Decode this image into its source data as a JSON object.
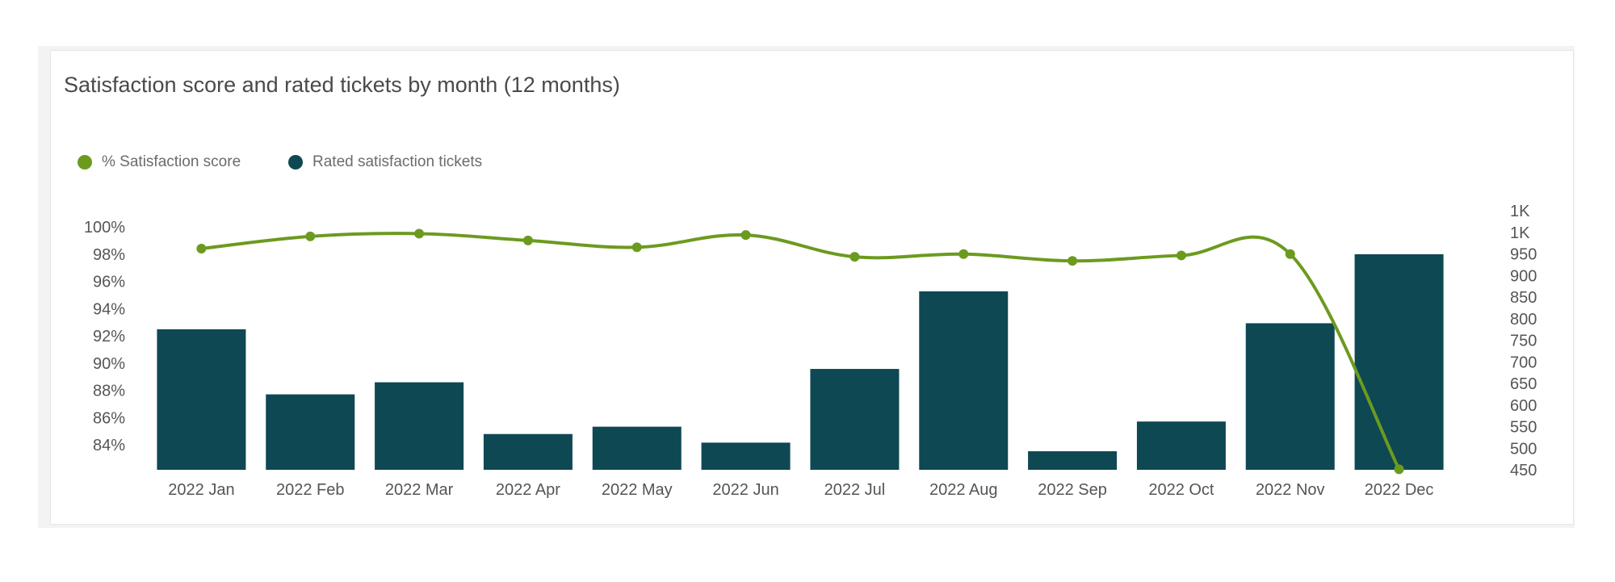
{
  "card": {
    "title": "Satisfaction score and rated tickets by month (12 months)"
  },
  "legend": {
    "items": [
      {
        "label": "% Satisfaction score",
        "color": "#6c9a1f"
      },
      {
        "label": "Rated satisfaction tickets",
        "color": "#0e4852"
      }
    ]
  },
  "chart_data": {
    "type": "bar",
    "categories": [
      "2022 Jan",
      "2022 Feb",
      "2022 Mar",
      "2022 Apr",
      "2022 May",
      "2022 Jun",
      "2022 Jul",
      "2022 Aug",
      "2022 Sep",
      "2022 Oct",
      "2022 Nov",
      "2022 Dec"
    ],
    "series": [
      {
        "name": "Rated satisfaction tickets",
        "type": "bar",
        "axis": "right",
        "color": "#0e4852",
        "values": [
          776,
          625,
          653,
          533,
          550,
          513,
          684,
          864,
          493,
          562,
          790,
          950
        ]
      },
      {
        "name": "% Satisfaction score",
        "type": "line",
        "axis": "left",
        "color": "#6c9a1f",
        "smooth": true,
        "values": [
          98.4,
          99.3,
          99.5,
          99.0,
          98.5,
          99.4,
          97.8,
          98.0,
          97.5,
          97.9,
          98.0,
          82.2
        ]
      }
    ],
    "y_left": {
      "ticks": [
        "100%",
        "98%",
        "96%",
        "94%",
        "92%",
        "90%",
        "88%",
        "86%",
        "84%"
      ],
      "range": [
        82.0,
        101.0
      ],
      "format": "percent"
    },
    "y_right": {
      "ticks": [
        "1K",
        "1K",
        "950",
        "900",
        "850",
        "800",
        "750",
        "700",
        "650",
        "600",
        "550",
        "500",
        "450"
      ],
      "range": [
        450,
        1050
      ]
    },
    "legend_position": "top-left",
    "grid": false
  }
}
